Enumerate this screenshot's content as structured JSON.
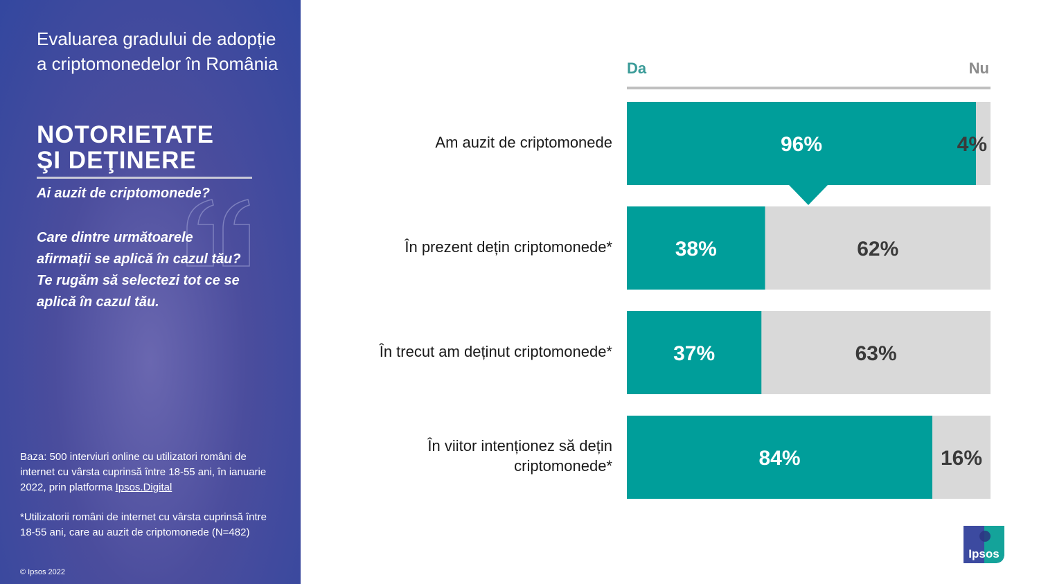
{
  "sidebar": {
    "title": "Evaluarea gradului de adopție a criptomonedelor în România",
    "heading_line1": "Notorietate",
    "heading_line2": "şi deţinere",
    "question1": "Ai auzit de criptomonede?",
    "question2": "Care dintre următoarele afirmații se aplică în cazul tău? Te rugăm să selectezi tot ce se aplică în cazul tău.",
    "base_prefix": "Baza: 500 interviuri online cu utilizatori români de internet cu vârsta cuprinsă între 18-55 ani, în ianuarie 2022, prin platforma ",
    "base_link": "Ipsos.Digital",
    "note": "*Utilizatorii români de internet cu vârsta cuprinsă între 18-55 ani, care au auzit de criptomonede (N=482)",
    "copyright": "© Ipsos 2022"
  },
  "logo_text": "Ipsos",
  "colors": {
    "da": "#009e9a",
    "nu": "#d9d9d9",
    "da_header": "#3a9b98",
    "nu_header": "#8c8c8c",
    "sidebar": "#3f4a9e"
  },
  "chart_data": {
    "type": "bar",
    "orientation": "horizontal",
    "stacked": true,
    "categories": [
      "Am auzit de criptomonede",
      "În prezent dețin criptomonede*",
      "În trecut am deținut criptomonede*",
      "În viitor intenționez să dețin criptomonede*"
    ],
    "series": [
      {
        "name": "Da",
        "values": [
          96,
          38,
          37,
          84
        ]
      },
      {
        "name": "Nu",
        "values": [
          4,
          62,
          63,
          16
        ]
      }
    ],
    "data_labels": {
      "Da": [
        "96%",
        "38%",
        "37%",
        "84%"
      ],
      "Nu": [
        "4%",
        "62%",
        "63%",
        "16%"
      ]
    },
    "xlim": [
      0,
      100
    ],
    "grid": false,
    "legend": "top"
  }
}
